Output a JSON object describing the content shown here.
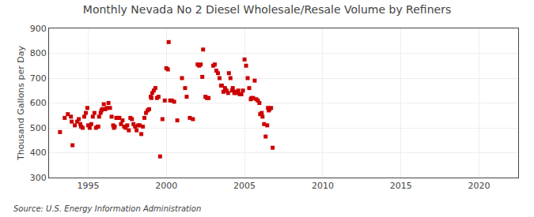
{
  "chart_data": {
    "type": "scatter",
    "title": "Monthly Nevada No 2 Diesel Wholesale/Resale Volume by Refiners",
    "ylabel": "Thousand Gallons per Day",
    "annotations": [
      "Source: U.S. Energy Information Administration"
    ],
    "color": "#cc0000",
    "marker": "square",
    "grid": true,
    "xlim": [
      1992.5,
      2022.5
    ],
    "ylim": [
      300,
      900
    ],
    "xticks": [
      1995,
      2000,
      2005,
      2010,
      2015,
      2020
    ],
    "yticks": [
      300,
      400,
      500,
      600,
      700,
      800,
      900
    ],
    "x": [
      1993.2,
      1993.5,
      1993.7,
      1993.9,
      1993.95,
      1994.0,
      1994.15,
      1994.3,
      1994.4,
      1994.5,
      1994.55,
      1994.65,
      1994.75,
      1994.85,
      1994.95,
      1995.0,
      1995.1,
      1995.2,
      1995.3,
      1995.4,
      1995.5,
      1995.6,
      1995.65,
      1995.7,
      1995.8,
      1995.85,
      1995.9,
      1995.95,
      1996.0,
      1996.1,
      1996.2,
      1996.3,
      1996.4,
      1996.5,
      1996.6,
      1996.65,
      1996.7,
      1996.8,
      1996.9,
      1997.0,
      1997.1,
      1997.2,
      1997.3,
      1997.4,
      1997.5,
      1997.6,
      1997.7,
      1997.8,
      1997.9,
      1998.0,
      1998.1,
      1998.2,
      1998.3,
      1998.4,
      1998.5,
      1998.6,
      1998.7,
      1998.8,
      1998.9,
      1999.0,
      1999.05,
      1999.1,
      1999.2,
      1999.3,
      1999.4,
      1999.5,
      1999.6,
      1999.75,
      1999.9,
      2000.0,
      2000.1,
      2000.15,
      2000.25,
      2000.35,
      2000.5,
      2000.7,
      2001.0,
      2001.2,
      2001.3,
      2001.5,
      2001.7,
      2002.0,
      2002.1,
      2002.2,
      2002.3,
      2002.35,
      2002.5,
      2002.6,
      2002.7,
      2003.0,
      2003.1,
      2003.2,
      2003.3,
      2003.4,
      2003.5,
      2003.55,
      2003.65,
      2003.75,
      2003.85,
      2003.95,
      2004.0,
      2004.1,
      2004.2,
      2004.25,
      2004.35,
      2004.4,
      2004.5,
      2004.6,
      2004.7,
      2004.8,
      2004.9,
      2005.0,
      2005.1,
      2005.2,
      2005.3,
      2005.4,
      2005.45,
      2005.55,
      2005.65,
      2005.75,
      2005.85,
      2005.95,
      2006.0,
      2006.1,
      2006.15,
      2006.25,
      2006.35,
      2006.45,
      2006.5,
      2006.55,
      2006.6,
      2006.7,
      2006.8
    ],
    "values": [
      483,
      540,
      555,
      545,
      525,
      430,
      510,
      525,
      535,
      515,
      505,
      500,
      545,
      560,
      580,
      510,
      500,
      515,
      545,
      560,
      500,
      505,
      505,
      545,
      560,
      570,
      575,
      575,
      595,
      575,
      580,
      600,
      580,
      545,
      510,
      500,
      505,
      540,
      540,
      540,
      515,
      530,
      505,
      500,
      510,
      490,
      540,
      535,
      515,
      505,
      490,
      510,
      510,
      475,
      505,
      540,
      560,
      570,
      575,
      625,
      620,
      640,
      650,
      660,
      620,
      625,
      385,
      535,
      610,
      740,
      735,
      845,
      610,
      610,
      605,
      530,
      700,
      660,
      625,
      540,
      535,
      755,
      750,
      755,
      705,
      815,
      625,
      620,
      620,
      750,
      755,
      730,
      720,
      700,
      670,
      670,
      645,
      660,
      650,
      640,
      720,
      700,
      650,
      660,
      640,
      645,
      640,
      650,
      635,
      635,
      650,
      775,
      750,
      700,
      660,
      615,
      620,
      620,
      690,
      615,
      610,
      600,
      555,
      560,
      545,
      515,
      465,
      510,
      580,
      570,
      575,
      580,
      420
    ]
  }
}
